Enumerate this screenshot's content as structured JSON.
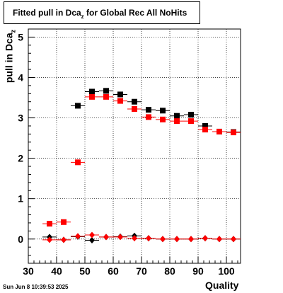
{
  "chart_data": {
    "type": "scatter",
    "title_main": "Fitted pull in Dca",
    "title_sub": "z",
    "title_rest": " for Global Rec All NoHits",
    "ylabel_main": "pull in Dca",
    "ylabel_sub": "z",
    "xlabel": "Quality",
    "xlim": [
      30,
      105
    ],
    "ylim": [
      -0.6,
      5.2
    ],
    "x_ticks": [
      30,
      40,
      50,
      60,
      70,
      80,
      90,
      100
    ],
    "y_ticks": [
      0,
      1,
      2,
      3,
      4,
      5
    ],
    "grid": true,
    "series": [
      {
        "color": "#000000",
        "marker": "square",
        "x": [
          47.5,
          52.5,
          57.5,
          62.5,
          67.5,
          72.5,
          77.5,
          82.5,
          87.5,
          92.5,
          97.5,
          102.5
        ],
        "y": [
          3.3,
          3.65,
          3.67,
          3.58,
          3.4,
          3.2,
          3.18,
          3.05,
          3.08,
          2.8,
          2.66,
          2.65
        ]
      },
      {
        "color": "#ff0000",
        "marker": "square",
        "x": [
          37.5,
          42.5,
          47.5,
          52.5,
          57.5,
          62.5,
          67.5,
          72.5,
          77.5,
          82.5,
          87.5,
          92.5,
          97.5,
          102.5
        ],
        "y": [
          0.38,
          0.42,
          1.9,
          3.52,
          3.52,
          3.42,
          3.22,
          3.02,
          2.96,
          2.92,
          2.92,
          2.71,
          2.66,
          2.64
        ]
      },
      {
        "color": "#000000",
        "marker": "diamond",
        "x": [
          37.5,
          42.5,
          47.5,
          52.5,
          57.5,
          62.5,
          67.5,
          72.5,
          77.5,
          82.5,
          87.5,
          92.5,
          97.5,
          102.5
        ],
        "y": [
          0.05,
          -0.02,
          0.06,
          -0.03,
          0.05,
          0.06,
          0.08,
          0.02,
          0.0,
          0.0,
          0.0,
          0.02,
          0.0,
          0.0
        ]
      },
      {
        "color": "#ff0000",
        "marker": "diamond",
        "x": [
          37.5,
          42.5,
          47.5,
          52.5,
          57.5,
          62.5,
          67.5,
          72.5,
          77.5,
          82.5,
          87.5,
          92.5,
          97.5,
          102.5
        ],
        "y": [
          -0.02,
          -0.02,
          0.07,
          0.1,
          0.05,
          0.05,
          0.02,
          0.02,
          0.0,
          0.0,
          0.0,
          0.02,
          0.0,
          0.0
        ]
      }
    ]
  },
  "timestamp": "Sun Jun  8 10:39:53 2025"
}
